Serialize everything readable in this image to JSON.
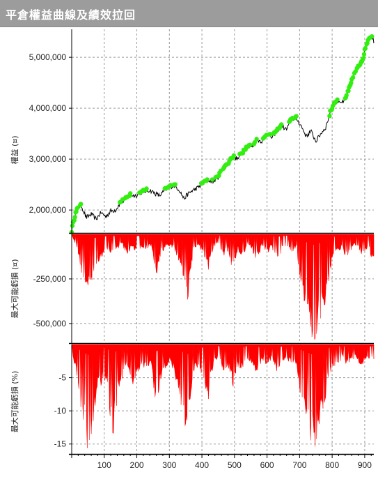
{
  "window": {
    "title": "平倉權益曲線及績效拉回"
  },
  "colors": {
    "title_bar": "#9c9c9c",
    "equity_line": "#000000",
    "new_high_marker": "#33ee11",
    "drawdown_fill": "#ff0000",
    "grid": "#9a9a9a"
  },
  "chart_data": [
    {
      "type": "line",
      "ylabel": "權益 (¤)",
      "xlim": [
        0,
        928
      ],
      "ylim": [
        1550000,
        5550000
      ],
      "yticks": [
        2000000,
        3000000,
        4000000,
        5000000
      ],
      "ytick_labels": [
        "2,000,000",
        "3,000,000",
        "4,000,000",
        "5,000,000"
      ],
      "grid": true,
      "markers": "green dots on new equity highs",
      "series": [
        {
          "x": [
            0,
            10,
            20,
            30,
            45,
            60,
            75,
            90,
            105,
            120,
            135,
            150,
            165,
            180,
            195,
            210,
            225,
            240,
            255,
            270,
            285,
            300,
            315,
            330,
            345,
            355,
            370,
            385,
            400,
            410,
            420,
            435,
            450,
            465,
            480,
            495,
            510,
            525,
            540,
            555,
            570,
            585,
            600,
            615,
            630,
            645,
            660,
            675,
            690,
            705,
            720,
            735,
            750,
            765,
            780,
            795,
            805,
            820,
            835,
            850,
            865,
            880,
            895,
            910,
            920,
            928
          ],
          "values": [
            1600000,
            1900000,
            2050000,
            2080000,
            1850000,
            1920000,
            1820000,
            1950000,
            1870000,
            1980000,
            2000000,
            2150000,
            2200000,
            2300000,
            2280000,
            2330000,
            2370000,
            2390000,
            2330000,
            2280000,
            2380000,
            2450000,
            2480000,
            2400000,
            2220000,
            2300000,
            2380000,
            2430000,
            2500000,
            2540000,
            2580000,
            2560000,
            2650000,
            2820000,
            2900000,
            3050000,
            3000000,
            3150000,
            3250000,
            3250000,
            3380000,
            3350000,
            3500000,
            3420000,
            3550000,
            3650000,
            3580000,
            3790000,
            3800000,
            3650000,
            3450000,
            3550000,
            3350000,
            3500000,
            3620000,
            3930000,
            4080000,
            4150000,
            4100000,
            4330000,
            4620000,
            4800000,
            5000000,
            5350000,
            5410000,
            5320000
          ]
        }
      ]
    },
    {
      "type": "area",
      "ylabel": "最大可能虧損 (¤)",
      "xlim": [
        0,
        928
      ],
      "ylim": [
        -610000,
        0
      ],
      "yticks": [
        -250000,
        -500000
      ],
      "ytick_labels": [
        "-250,000",
        "-500,000"
      ],
      "grid": true,
      "series": [
        {
          "x": [
            0,
            5,
            15,
            25,
            35,
            45,
            55,
            62,
            70,
            80,
            95,
            110,
            125,
            140,
            155,
            170,
            185,
            200,
            215,
            230,
            245,
            260,
            275,
            290,
            305,
            320,
            335,
            345,
            355,
            365,
            375,
            390,
            405,
            420,
            435,
            450,
            465,
            480,
            495,
            510,
            525,
            540,
            555,
            570,
            585,
            600,
            615,
            630,
            645,
            660,
            675,
            690,
            705,
            720,
            735,
            745,
            755,
            765,
            775,
            785,
            800,
            815,
            830,
            845,
            860,
            875,
            890,
            905,
            915,
            928
          ],
          "values": [
            0,
            -30000,
            -60000,
            -150000,
            -240000,
            -260000,
            -330000,
            -250000,
            -200000,
            -150000,
            -120000,
            -100000,
            -90000,
            -80000,
            -60000,
            -110000,
            -70000,
            -90000,
            -70000,
            -80000,
            -60000,
            -230000,
            -100000,
            -70000,
            -60000,
            -100000,
            -170000,
            -300000,
            -390000,
            -200000,
            -80000,
            -60000,
            -110000,
            -180000,
            -70000,
            -50000,
            -120000,
            -90000,
            -200000,
            -80000,
            -130000,
            -60000,
            -90000,
            -140000,
            -60000,
            -100000,
            -70000,
            -150000,
            -90000,
            -70000,
            -100000,
            -80000,
            -300000,
            -430000,
            -520000,
            -590000,
            -500000,
            -460000,
            -420000,
            -300000,
            -140000,
            -100000,
            -70000,
            -130000,
            -80000,
            -60000,
            -100000,
            -80000,
            -100000,
            -150000
          ]
        }
      ]
    },
    {
      "type": "area",
      "ylabel": "最大可能虧損 (%)",
      "xlim": [
        0,
        928
      ],
      "ylim": [
        -16.5,
        0
      ],
      "xticks": [
        100,
        200,
        300,
        400,
        500,
        600,
        700,
        800,
        900
      ],
      "yticks": [
        -5,
        -10,
        -15
      ],
      "ytick_labels": [
        "-5",
        "-10",
        "-15"
      ],
      "grid": true,
      "series": [
        {
          "x": [
            0,
            5,
            15,
            25,
            35,
            45,
            55,
            62,
            70,
            80,
            95,
            110,
            125,
            140,
            155,
            170,
            185,
            200,
            215,
            230,
            245,
            260,
            275,
            290,
            305,
            320,
            335,
            345,
            355,
            365,
            375,
            390,
            405,
            420,
            435,
            450,
            465,
            480,
            495,
            510,
            525,
            540,
            555,
            570,
            585,
            600,
            615,
            630,
            645,
            660,
            675,
            690,
            705,
            720,
            735,
            745,
            755,
            765,
            775,
            785,
            800,
            815,
            830,
            845,
            860,
            875,
            890,
            905,
            915,
            928
          ],
          "values": [
            0,
            -2,
            -4,
            -8,
            -12,
            -14,
            -16.2,
            -13,
            -10,
            -7,
            -5,
            -6,
            -15,
            -8,
            -5,
            -3,
            -6,
            -4,
            -3,
            -4,
            -3,
            -10,
            -5,
            -3,
            -2.5,
            -5,
            -8,
            -13,
            -15.5,
            -8,
            -4,
            -3,
            -5,
            -8,
            -3,
            -2,
            -4,
            -3,
            -6,
            -3,
            -4,
            -2,
            -3,
            -4,
            -2,
            -3,
            -2,
            -4,
            -3,
            -2,
            -3,
            -3,
            -8,
            -11,
            -14,
            -15.8,
            -13,
            -10,
            -9,
            -6,
            -3,
            -3,
            -2,
            -3,
            -2,
            -2,
            -3,
            -2,
            -3,
            -2
          ]
        }
      ]
    }
  ]
}
